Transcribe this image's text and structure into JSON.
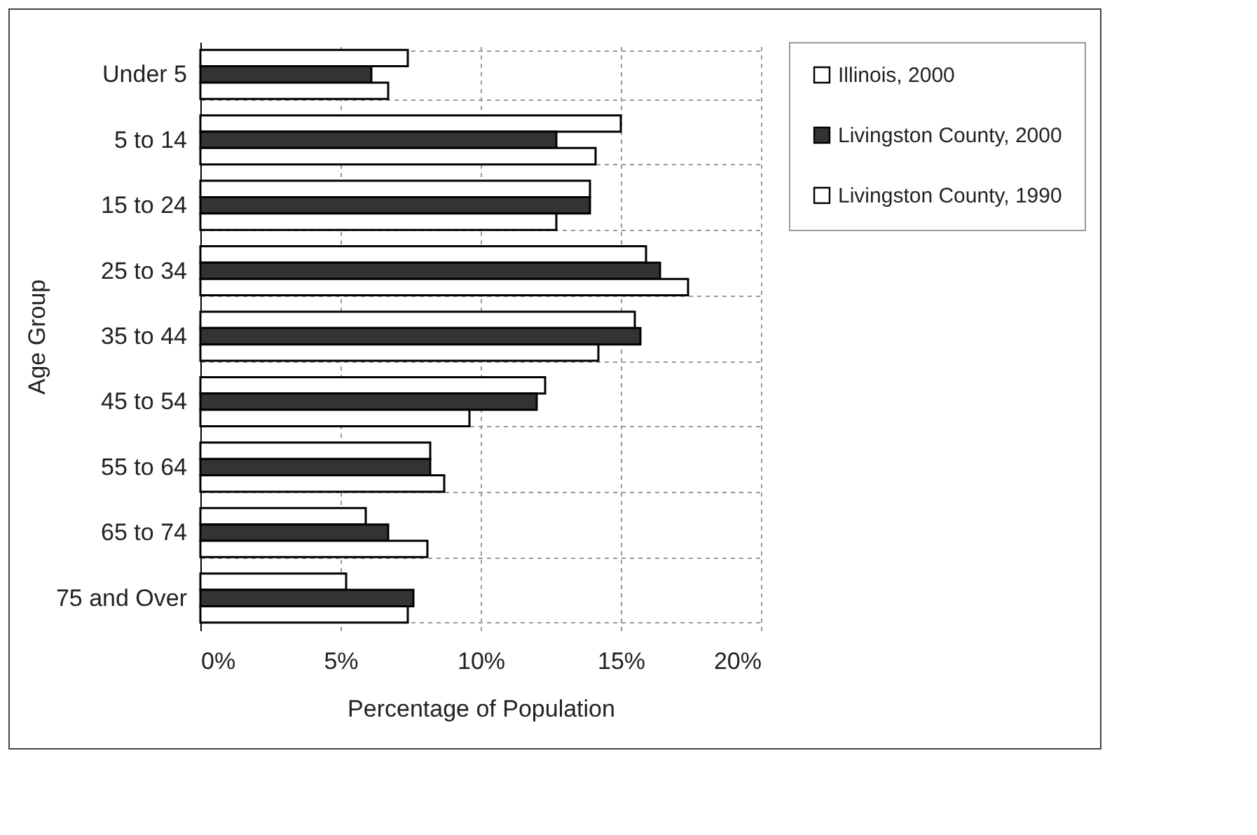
{
  "chart_data": {
    "type": "bar",
    "orientation": "horizontal",
    "xlabel": "Percentage of Population",
    "ylabel": "Age Group",
    "categories": [
      "Under 5",
      "5 to 14",
      "15 to 24",
      "25 to 34",
      "35 to 44",
      "45 to 54",
      "55 to 64",
      "65 to 74",
      "75 and Over"
    ],
    "series": [
      {
        "name": "Illinois, 2000",
        "color": "#ffffff",
        "values": [
          7.4,
          15.0,
          13.9,
          15.9,
          15.5,
          12.3,
          8.2,
          5.9,
          5.2
        ]
      },
      {
        "name": "Livingston County, 2000",
        "color": "#333333",
        "values": [
          6.1,
          12.7,
          13.9,
          16.4,
          15.7,
          12.0,
          8.2,
          6.7,
          7.6
        ]
      },
      {
        "name": "Livingston County, 1990",
        "color": "#ffffff",
        "values": [
          6.7,
          14.1,
          12.7,
          17.4,
          14.2,
          9.6,
          8.7,
          8.1,
          7.4
        ]
      }
    ],
    "xlim": [
      0,
      20
    ],
    "xticks": [
      {
        "value": 0,
        "label": "0%"
      },
      {
        "value": 5,
        "label": "5%"
      },
      {
        "value": 10,
        "label": "10%"
      },
      {
        "value": 15,
        "label": "15%"
      },
      {
        "value": 20,
        "label": "20%"
      }
    ],
    "grid": true,
    "legend": "right"
  }
}
